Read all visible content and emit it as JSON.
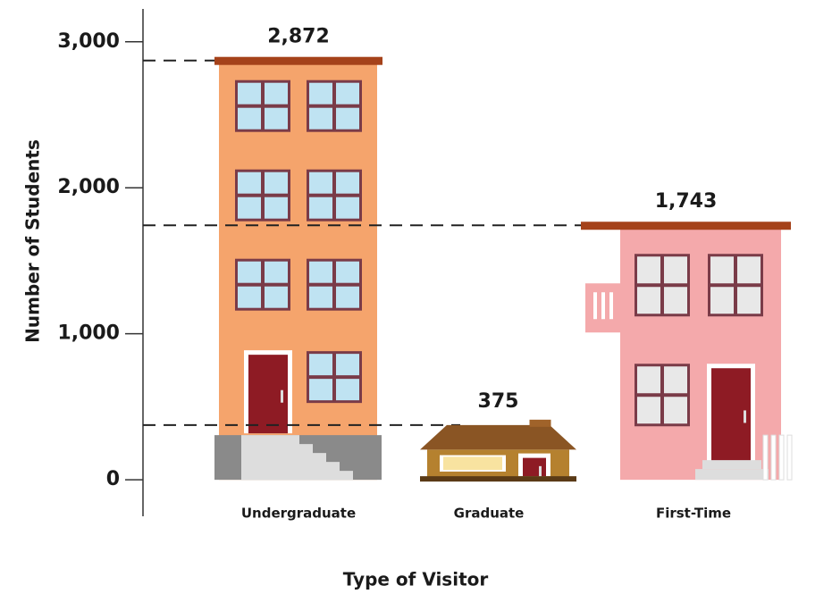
{
  "chart_data": {
    "type": "bar",
    "categories": [
      "Undergraduate",
      "Graduate",
      "First-Time"
    ],
    "values": [
      2872,
      375,
      1743
    ],
    "value_labels": [
      "2,872",
      "375",
      "1,743"
    ],
    "colors": [
      "#f5a46c",
      "#b5812f",
      "#f4a9ab"
    ],
    "x_label": "Type of Visitor",
    "y_label": "Number of Students",
    "ylim": [
      -250,
      3225
    ],
    "yticks": [
      0,
      {
        "value": 1000,
        "label": "1,000"
      },
      {
        "value": 2000,
        "label": "2,000"
      },
      {
        "value": 3000,
        "label": "3,000"
      }
    ]
  }
}
